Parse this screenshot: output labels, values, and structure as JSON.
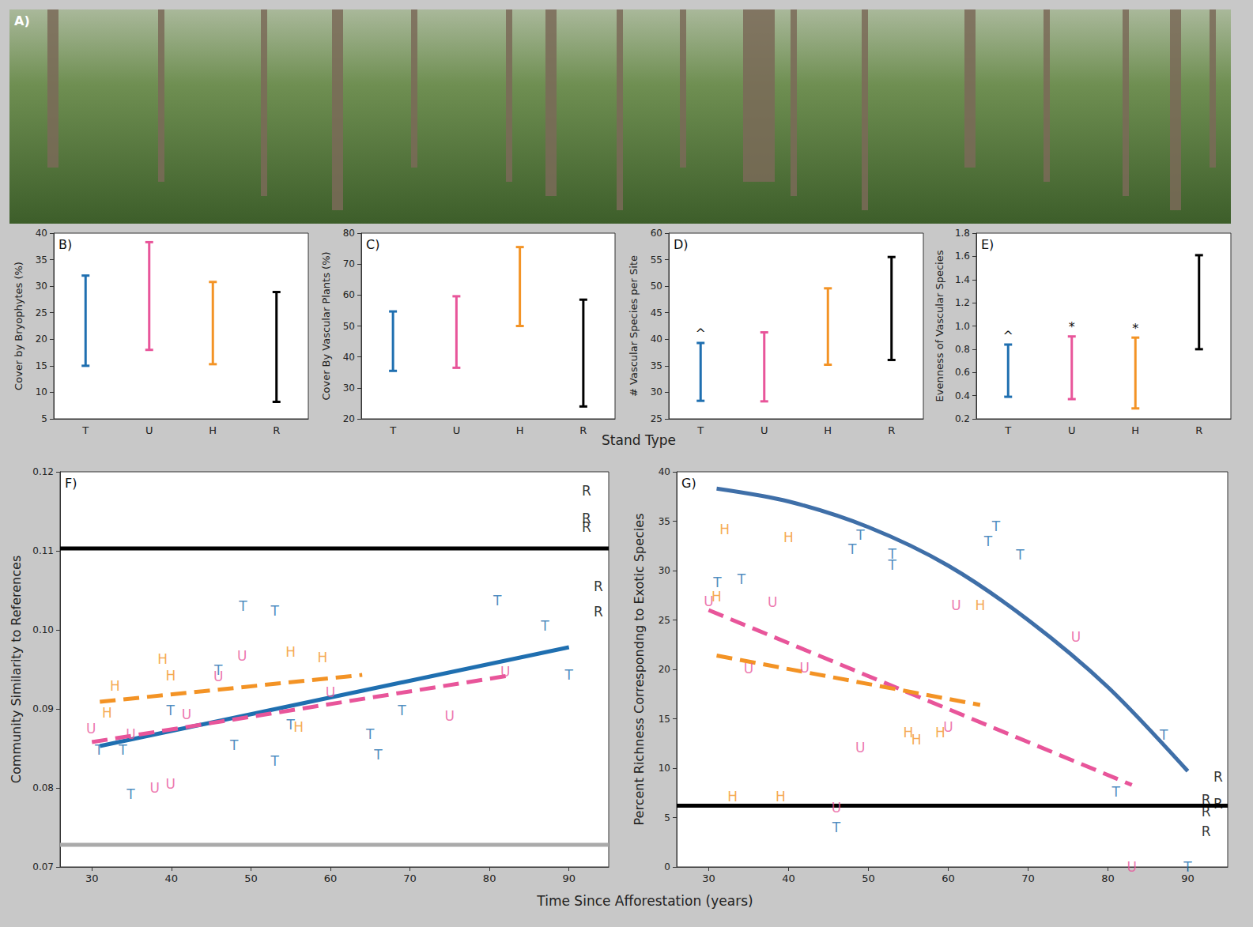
{
  "figure": {
    "panel_label": "A)",
    "x_labels": [
      "Stand Type",
      "Time Since Afforestation (years)"
    ]
  },
  "chart_data": [
    {
      "type": "errorbar",
      "letter": "B)",
      "ylabel": "Cover by Bryophytes (%)",
      "categories": [
        "T",
        "U",
        "H",
        "R"
      ],
      "low": [
        15,
        18,
        15.3,
        8.2
      ],
      "high": [
        32,
        38.3,
        30.8,
        28.9
      ],
      "colors": [
        "#1f6fb0",
        "#e8559a",
        "#f39325",
        "#000000"
      ],
      "annotations": [
        null,
        null,
        null,
        null
      ],
      "ylim": [
        5,
        40
      ],
      "yticks": [
        5,
        10,
        15,
        20,
        25,
        30,
        35,
        40
      ]
    },
    {
      "type": "errorbar",
      "letter": "C)",
      "ylabel": "Cover By Vascular Plants (%)",
      "categories": [
        "T",
        "U",
        "H",
        "R"
      ],
      "low": [
        35.5,
        36.5,
        50,
        24
      ],
      "high": [
        54.7,
        59.6,
        75.5,
        58.5
      ],
      "colors": [
        "#1f6fb0",
        "#e8559a",
        "#f39325",
        "#000000"
      ],
      "annotations": [
        null,
        null,
        null,
        null
      ],
      "ylim": [
        20,
        80
      ],
      "yticks": [
        20,
        30,
        40,
        50,
        60,
        70,
        80
      ]
    },
    {
      "type": "errorbar",
      "letter": "D)",
      "ylabel": "# Vascular Species per Site",
      "categories": [
        "T",
        "U",
        "H",
        "R"
      ],
      "low": [
        28.4,
        28.3,
        35.2,
        36.1
      ],
      "high": [
        39.3,
        41.3,
        49.6,
        55.5
      ],
      "colors": [
        "#1f6fb0",
        "#e8559a",
        "#f39325",
        "#000000"
      ],
      "annotations": [
        "^",
        null,
        null,
        null
      ],
      "ylim": [
        25,
        60
      ],
      "yticks": [
        25,
        30,
        35,
        40,
        45,
        50,
        55,
        60
      ]
    },
    {
      "type": "errorbar",
      "letter": "E)",
      "ylabel": "Evenness of Vascular Species",
      "categories": [
        "T",
        "U",
        "H",
        "R"
      ],
      "low": [
        0.39,
        0.37,
        0.29,
        0.8
      ],
      "high": [
        0.84,
        0.91,
        0.9,
        1.61
      ],
      "colors": [
        "#1f6fb0",
        "#e8559a",
        "#f39325",
        "#000000"
      ],
      "annotations": [
        "^",
        "*",
        "*",
        null
      ],
      "ylim": [
        0.2,
        1.8
      ],
      "yticks": [
        0.2,
        0.4,
        0.6,
        0.8,
        {
          "value": 1,
          "label": "1.0"
        },
        1.2,
        1.4,
        1.6,
        1.8
      ]
    },
    {
      "type": "scatter",
      "letter": "F)",
      "ylabel": "Community Similarity to References",
      "xlim": [
        26,
        95
      ],
      "xticks": [
        30,
        40,
        50,
        60,
        70,
        80,
        90
      ],
      "ylim": [
        0.07,
        0.12
      ],
      "yticks": [
        0.07,
        0.08,
        0.09,
        {
          "value": 0.1,
          "label": "0.10"
        },
        0.11,
        0.12
      ],
      "series": [
        {
          "name": "T",
          "color": "#1f6fb0",
          "marker": "letter",
          "x": [
            30.9,
            33.9,
            34.9,
            39.9,
            49,
            53,
            45.9,
            47.9,
            53,
            55,
            65,
            66,
            69,
            81,
            87,
            90
          ],
          "values": [
            0.0848,
            0.0848,
            0.0792,
            0.0898,
            0.103,
            0.1024,
            0.0949,
            0.0854,
            0.0834,
            0.088,
            0.0868,
            0.0842,
            0.0898,
            0.1037,
            0.1005,
            0.0943
          ]
        },
        {
          "name": "U",
          "color": "#e8559a",
          "marker": "letter",
          "x": [
            29.9,
            34.9,
            37.9,
            39.9,
            41.9,
            45.9,
            48.9,
            60,
            75,
            82
          ],
          "values": [
            0.0875,
            0.0868,
            0.08,
            0.0805,
            0.0893,
            0.0941,
            0.0967,
            0.0921,
            0.0891,
            0.0947
          ]
        },
        {
          "name": "H",
          "color": "#f39325",
          "marker": "letter",
          "x": [
            32.9,
            31.9,
            38.9,
            39.9,
            55,
            56,
            59
          ],
          "values": [
            0.0929,
            0.0895,
            0.0963,
            0.0942,
            0.0972,
            0.0877,
            0.0965
          ]
        },
        {
          "name": "R",
          "color": "#000000",
          "marker": "letter",
          "x": [
            92.2,
            92.2,
            92.2,
            93.7,
            93.7
          ],
          "values": [
            0.1176,
            0.1141,
            0.113,
            0.1055,
            0.1023
          ]
        },
        {
          "type": "line",
          "line_style": "solid",
          "color": "#1f6fb0",
          "x": [
            31,
            90
          ],
          "values": [
            0.0853,
            0.0978
          ]
        },
        {
          "type": "line",
          "line_style": "dashed",
          "color": "#e8559a",
          "x": [
            30,
            83
          ],
          "values": [
            0.0858,
            0.0943
          ]
        },
        {
          "type": "line",
          "line_style": "dashed",
          "color": "#f39325",
          "x": [
            31,
            64
          ],
          "values": [
            0.0909,
            0.0943
          ]
        },
        {
          "type": "line",
          "line_style": "solid",
          "color": "#000000",
          "x": [
            26,
            95
          ],
          "values": [
            0.1103,
            0.1103
          ]
        },
        {
          "type": "line",
          "line_style": "solid",
          "color": "#aaaaaa",
          "x": [
            26,
            95
          ],
          "values": [
            0.0728,
            0.0728
          ]
        }
      ]
    },
    {
      "type": "scatter",
      "letter": "G)",
      "ylabel": "Percent Richness Correspondng to Exotic Species",
      "xlim": [
        26,
        95
      ],
      "xticks": [
        30,
        40,
        50,
        60,
        70,
        80,
        90
      ],
      "ylim": [
        0,
        40
      ],
      "yticks": [
        0,
        5,
        10,
        15,
        20,
        25,
        30,
        35,
        40
      ],
      "series": [
        {
          "name": "T",
          "color": "#1f6fb0",
          "marker": "letter",
          "x": [
            31.1,
            34.1,
            48,
            49,
            53,
            53,
            65,
            66,
            69,
            81,
            87,
            46,
            90
          ],
          "values": [
            28.8,
            29.1,
            32.2,
            33.6,
            30.6,
            31.7,
            33,
            34.5,
            31.6,
            7.6,
            13.4,
            4,
            0
          ]
        },
        {
          "name": "U",
          "color": "#e8559a",
          "marker": "letter",
          "x": [
            30,
            35,
            38,
            42,
            46,
            49,
            61,
            60,
            76,
            83
          ],
          "values": [
            26.9,
            20.1,
            26.8,
            20.2,
            6,
            12.1,
            26.5,
            14.2,
            23.3,
            0
          ]
        },
        {
          "name": "H",
          "color": "#f39325",
          "marker": "letter",
          "x": [
            32,
            31,
            40,
            33,
            39,
            64,
            55,
            56,
            59
          ],
          "values": [
            34.2,
            27.4,
            33.4,
            7.1,
            7.1,
            26.5,
            13.6,
            12.9,
            13.6
          ]
        },
        {
          "name": "R",
          "color": "#000000",
          "marker": "letter",
          "x": [
            93.8,
            92.3,
            93.8,
            92.3,
            92.3
          ],
          "values": [
            9.1,
            6.8,
            6.4,
            5.6,
            3.6
          ]
        },
        {
          "type": "line",
          "line_style": "solid",
          "color": "#3f6fa8",
          "x": [
            31,
            40,
            50,
            60,
            70,
            80,
            90
          ],
          "values": [
            38.3,
            37,
            34.4,
            30.5,
            25,
            18.2,
            9.7
          ]
        },
        {
          "type": "line",
          "line_style": "dashed",
          "color": "#e8559a",
          "x": [
            30,
            83
          ],
          "values": [
            26,
            8.3
          ]
        },
        {
          "type": "line",
          "line_style": "dashed",
          "color": "#f39325",
          "x": [
            31,
            64
          ],
          "values": [
            21.4,
            16.4
          ]
        },
        {
          "type": "line",
          "line_style": "solid",
          "color": "#000000",
          "x": [
            26,
            95
          ],
          "values": [
            6.2,
            6.2
          ]
        }
      ]
    }
  ]
}
